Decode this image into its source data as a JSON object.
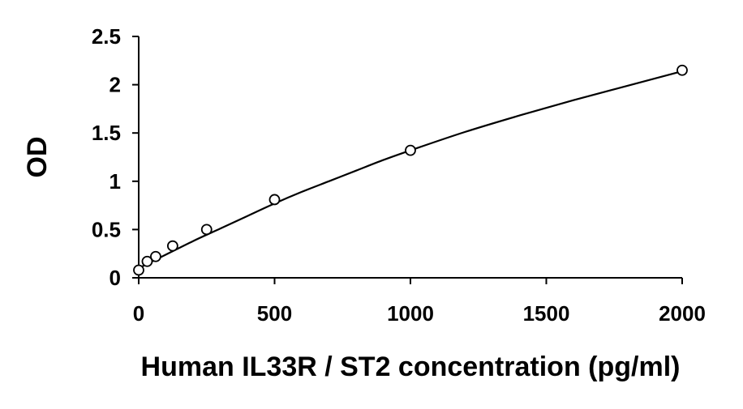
{
  "chart_data": {
    "type": "scatter",
    "xlabel": "Human IL33R / ST2 concentration (pg/ml)",
    "ylabel": "OD",
    "xlim": [
      0,
      2000
    ],
    "ylim": [
      0,
      2.5
    ],
    "x_ticks": [
      "0",
      "500",
      "1000",
      "1500",
      "2000"
    ],
    "y_ticks": [
      "0",
      "0.5",
      "1",
      "1.5",
      "2",
      "2.5"
    ],
    "grid": false,
    "legend": "none",
    "marker": "open-circle",
    "fit": "smooth-curve",
    "colors": {
      "axis": "#000000",
      "marker": "#000000",
      "curve": "#000000",
      "background": "#ffffff"
    },
    "points": [
      {
        "x": 0,
        "y": 0.08
      },
      {
        "x": 31.25,
        "y": 0.17
      },
      {
        "x": 62.5,
        "y": 0.22
      },
      {
        "x": 125,
        "y": 0.33
      },
      {
        "x": 250,
        "y": 0.5
      },
      {
        "x": 500,
        "y": 0.81
      },
      {
        "x": 1000,
        "y": 1.32
      },
      {
        "x": 2000,
        "y": 2.15
      }
    ],
    "curve": [
      {
        "x": 0,
        "y": 0.1
      },
      {
        "x": 100,
        "y": 0.24
      },
      {
        "x": 200,
        "y": 0.38
      },
      {
        "x": 300,
        "y": 0.51
      },
      {
        "x": 400,
        "y": 0.64
      },
      {
        "x": 500,
        "y": 0.77
      },
      {
        "x": 600,
        "y": 0.89
      },
      {
        "x": 700,
        "y": 1.0
      },
      {
        "x": 800,
        "y": 1.11
      },
      {
        "x": 900,
        "y": 1.22
      },
      {
        "x": 1000,
        "y": 1.32
      },
      {
        "x": 1200,
        "y": 1.51
      },
      {
        "x": 1400,
        "y": 1.68
      },
      {
        "x": 1600,
        "y": 1.84
      },
      {
        "x": 1800,
        "y": 1.99
      },
      {
        "x": 2000,
        "y": 2.14
      }
    ]
  }
}
